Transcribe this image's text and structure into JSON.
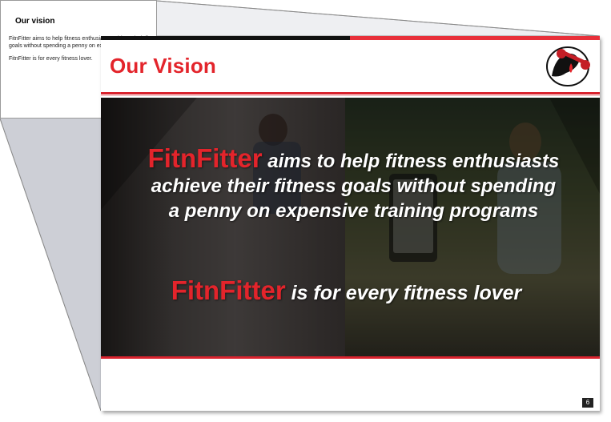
{
  "outline_slide": {
    "title": "Our vision",
    "paragraph1": "FitnFitter aims to help fitness enthusiasts achieve their fitness goals without spending a penny on expensive training programs.",
    "paragraph2": "FitnFitter is for every fitness lover."
  },
  "slide": {
    "title": "Our Vision",
    "message1": {
      "brand": "FitnFitter",
      "text": " aims to help fitness enthusiasts achieve their fitness goals without spending a penny on expensive training programs"
    },
    "message2": {
      "brand": "FitnFitter",
      "text": " is for every fitness lover"
    },
    "page_number": "6"
  },
  "colors": {
    "accent_red": "#e3242b",
    "bar_black": "#111111",
    "text_white": "#ffffff"
  },
  "icons": {
    "logo": "fitness-logo-icon"
  }
}
